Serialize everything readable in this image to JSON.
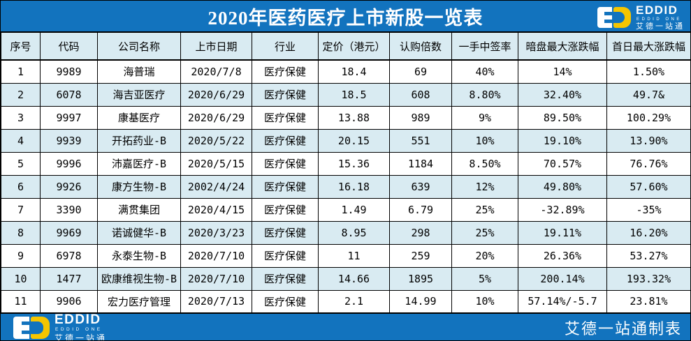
{
  "page_title": "2020年医药医疗上市新股一览表",
  "brand": {
    "name": "EDDID",
    "subtitle": "EDDID ONE",
    "cn_name": "艾德一站通"
  },
  "footer": {
    "credit": "艾德一站通制表"
  },
  "colors": {
    "brand_blue": "#1273BE",
    "logo_yellow": "#F6C500",
    "header_row_bg": "#D9EBF2",
    "alt_row_bg": "#D9EBF2",
    "row_bg": "#FFFFFF",
    "border": "#000000"
  },
  "chart_data": {
    "type": "table",
    "title": "2020年医药医疗上市新股一览表",
    "headers": [
      "序号",
      "代码",
      "公司名称",
      "上市日期",
      "行业",
      "定价（港元）",
      "认购倍数",
      "一手中签率",
      "暗盘最大涨跌幅",
      "首日最大涨跌幅"
    ],
    "rows": [
      [
        "1",
        "9989",
        "海普瑞",
        "2020/7/8",
        "医疗保健",
        "18.4",
        "69",
        "40%",
        "14%",
        "1.50%"
      ],
      [
        "2",
        "6078",
        "海吉亚医疗",
        "2020/6/29",
        "医疗保健",
        "18.5",
        "608",
        "8.80%",
        "32.40%",
        "49.7&"
      ],
      [
        "3",
        "9997",
        "康基医疗",
        "2020/6/29",
        "医疗保健",
        "13.88",
        "989",
        "9%",
        "89.50%",
        "100.29%"
      ],
      [
        "4",
        "9939",
        "开拓药业-B",
        "2020/5/22",
        "医疗保健",
        "20.15",
        "551",
        "10%",
        "19.10%",
        "13.90%"
      ],
      [
        "5",
        "9996",
        "沛嘉医疗-B",
        "2020/5/15",
        "医疗保健",
        "15.36",
        "1184",
        "8.50%",
        "70.57%",
        "76.76%"
      ],
      [
        "6",
        "9926",
        "康方生物-B",
        "2002/4/24",
        "医疗保健",
        "16.18",
        "639",
        "12%",
        "49.80%",
        "57.60%"
      ],
      [
        "7",
        "3390",
        "满贯集团",
        "2020/4/15",
        "医疗保健",
        "1.49",
        "6.79",
        "25%",
        "-32.89%",
        "-35%"
      ],
      [
        "8",
        "9969",
        "诺诚健华-B",
        "2020/3/23",
        "医疗保健",
        "8.95",
        "298",
        "25%",
        "19.11%",
        "16.20%"
      ],
      [
        "9",
        "6978",
        "永泰生物-B",
        "2020/7/10",
        "医疗保健",
        "11",
        "259",
        "20%",
        "26.36%",
        "53.27%"
      ],
      [
        "10",
        "1477",
        "欧康维视生物-B",
        "2020/7/10",
        "医疗保健",
        "14.66",
        "1895",
        "5%",
        "200.14%",
        "193.32%"
      ],
      [
        "11",
        "9906",
        "宏力医疗管理",
        "2020/7/13",
        "医疗保健",
        "2.1",
        "14.99",
        "10%",
        "57.14%/-5.7",
        "23.81%"
      ]
    ]
  }
}
